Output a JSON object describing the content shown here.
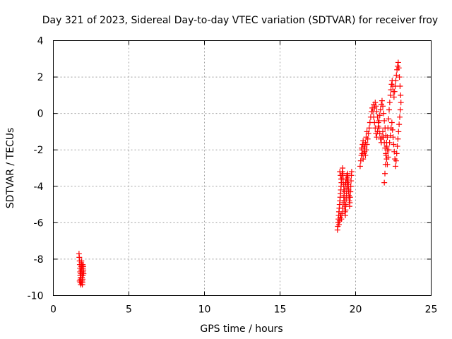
{
  "chart_data": {
    "type": "scatter",
    "title": "Day 321 of 2023, Sidereal Day-to-day VTEC variation (SDTVAR) for receiver froy",
    "xlabel": "GPS time / hours",
    "ylabel": "SDTVAR / TECUs",
    "xlim": [
      0,
      25
    ],
    "ylim": [
      -10,
      4
    ],
    "xticks": [
      0,
      5,
      10,
      15,
      20,
      25
    ],
    "yticks": [
      -10,
      -8,
      -6,
      -4,
      -2,
      0,
      2,
      4
    ],
    "grid": true,
    "marker": "+",
    "color": "#ff0000",
    "series": [
      {
        "points": [
          [
            1.7,
            -7.7
          ],
          [
            1.72,
            -7.9
          ],
          [
            1.74,
            -8.1
          ],
          [
            1.75,
            -8.3
          ],
          [
            1.76,
            -8.5
          ],
          [
            1.77,
            -8.7
          ],
          [
            1.78,
            -8.9
          ],
          [
            1.79,
            -9.1
          ],
          [
            1.8,
            -9.2
          ],
          [
            1.81,
            -9.0
          ],
          [
            1.82,
            -8.8
          ],
          [
            1.83,
            -8.6
          ],
          [
            1.84,
            -8.4
          ],
          [
            1.85,
            -8.2
          ],
          [
            1.86,
            -8.1
          ],
          [
            1.87,
            -8.3
          ],
          [
            1.88,
            -8.5
          ],
          [
            1.89,
            -8.8
          ],
          [
            1.9,
            -9.0
          ],
          [
            1.91,
            -9.2
          ],
          [
            1.92,
            -9.4
          ],
          [
            1.93,
            -9.3
          ],
          [
            1.94,
            -9.1
          ],
          [
            1.95,
            -8.9
          ],
          [
            1.96,
            -8.7
          ],
          [
            1.97,
            -8.5
          ],
          [
            1.98,
            -8.4
          ],
          [
            1.99,
            -8.6
          ],
          [
            2.0,
            -8.8
          ],
          [
            1.74,
            -9.2
          ],
          [
            1.78,
            -9.3
          ],
          [
            1.82,
            -9.4
          ],
          [
            1.86,
            -9.3
          ],
          [
            1.9,
            -8.4
          ],
          [
            1.95,
            -8.3
          ],
          [
            18.8,
            -6.4
          ],
          [
            18.82,
            -6.2
          ],
          [
            18.84,
            -6.0
          ],
          [
            18.86,
            -5.8
          ],
          [
            18.88,
            -5.6
          ],
          [
            18.9,
            -5.4
          ],
          [
            18.92,
            -5.2
          ],
          [
            18.94,
            -5.0
          ],
          [
            18.96,
            -4.8
          ],
          [
            18.98,
            -4.6
          ],
          [
            19.0,
            -4.4
          ],
          [
            19.02,
            -4.2
          ],
          [
            19.04,
            -4.0
          ],
          [
            19.06,
            -3.8
          ],
          [
            19.08,
            -3.6
          ],
          [
            19.1,
            -3.4
          ],
          [
            19.12,
            -3.2
          ],
          [
            19.14,
            -3.0
          ],
          [
            19.16,
            -3.3
          ],
          [
            19.18,
            -3.6
          ],
          [
            19.2,
            -3.9
          ],
          [
            19.22,
            -4.2
          ],
          [
            19.24,
            -4.5
          ],
          [
            19.26,
            -4.8
          ],
          [
            19.28,
            -5.1
          ],
          [
            19.3,
            -5.4
          ],
          [
            19.32,
            -5.6
          ],
          [
            19.34,
            -5.3
          ],
          [
            19.36,
            -5.0
          ],
          [
            19.38,
            -4.7
          ],
          [
            19.4,
            -4.4
          ],
          [
            19.42,
            -4.1
          ],
          [
            19.44,
            -3.8
          ],
          [
            19.46,
            -3.5
          ],
          [
            19.48,
            -3.3
          ],
          [
            19.5,
            -3.6
          ],
          [
            19.52,
            -3.9
          ],
          [
            19.54,
            -4.2
          ],
          [
            19.56,
            -4.5
          ],
          [
            19.58,
            -4.8
          ],
          [
            19.6,
            -5.1
          ],
          [
            19.62,
            -4.9
          ],
          [
            19.64,
            -4.6
          ],
          [
            19.66,
            -4.3
          ],
          [
            19.68,
            -4.0
          ],
          [
            19.7,
            -3.7
          ],
          [
            19.72,
            -3.4
          ],
          [
            19.74,
            -3.2
          ],
          [
            19.02,
            -5.6
          ],
          [
            19.06,
            -5.8
          ],
          [
            19.1,
            -5.5
          ],
          [
            19.14,
            -5.2
          ],
          [
            19.18,
            -4.9
          ],
          [
            19.22,
            -4.6
          ],
          [
            19.26,
            -4.3
          ],
          [
            19.3,
            -4.0
          ],
          [
            19.34,
            -3.8
          ],
          [
            19.38,
            -3.6
          ],
          [
            19.42,
            -3.4
          ],
          [
            19.46,
            -3.7
          ],
          [
            19.5,
            -4.0
          ],
          [
            19.54,
            -4.3
          ],
          [
            19.58,
            -4.6
          ],
          [
            18.96,
            -3.2
          ],
          [
            19.0,
            -3.4
          ],
          [
            19.04,
            -3.6
          ],
          [
            18.9,
            -6.1
          ],
          [
            18.94,
            -5.9
          ],
          [
            18.98,
            -5.7
          ],
          [
            20.3,
            -2.9
          ],
          [
            20.34,
            -2.6
          ],
          [
            20.38,
            -2.3
          ],
          [
            20.42,
            -2.0
          ],
          [
            20.46,
            -1.7
          ],
          [
            20.5,
            -1.5
          ],
          [
            20.55,
            -1.8
          ],
          [
            20.6,
            -2.1
          ],
          [
            20.65,
            -2.3
          ],
          [
            20.7,
            -2.0
          ],
          [
            20.75,
            -1.7
          ],
          [
            20.8,
            -1.4
          ],
          [
            20.85,
            -1.1
          ],
          [
            20.9,
            -0.8
          ],
          [
            20.95,
            -0.5
          ],
          [
            21.0,
            -0.2
          ],
          [
            21.05,
            0.1
          ],
          [
            21.1,
            0.3
          ],
          [
            21.15,
            0.1
          ],
          [
            21.2,
            -0.2
          ],
          [
            21.25,
            -0.5
          ],
          [
            21.3,
            -0.8
          ],
          [
            21.35,
            -1.1
          ],
          [
            21.4,
            -1.3
          ],
          [
            21.45,
            -1.0
          ],
          [
            21.5,
            -0.7
          ],
          [
            21.55,
            -0.4
          ],
          [
            21.6,
            -0.1
          ],
          [
            21.65,
            0.2
          ],
          [
            21.7,
            0.5
          ],
          [
            21.75,
            0.7
          ],
          [
            21.8,
            0.4
          ],
          [
            21.85,
            0.0
          ],
          [
            21.9,
            -0.4
          ],
          [
            21.95,
            -0.8
          ],
          [
            22.0,
            -1.2
          ],
          [
            22.05,
            -1.6
          ],
          [
            22.1,
            -2.0
          ],
          [
            21.9,
            -3.8
          ],
          [
            21.94,
            -3.3
          ],
          [
            21.98,
            -2.8
          ],
          [
            22.02,
            -2.3
          ],
          [
            22.06,
            -1.8
          ],
          [
            22.1,
            -1.3
          ],
          [
            22.14,
            -0.8
          ],
          [
            22.18,
            -0.3
          ],
          [
            22.22,
            0.2
          ],
          [
            22.26,
            0.6
          ],
          [
            22.3,
            1.0
          ],
          [
            22.34,
            1.3
          ],
          [
            22.38,
            1.6
          ],
          [
            22.42,
            1.8
          ],
          [
            22.46,
            1.5
          ],
          [
            22.5,
            1.2
          ],
          [
            22.54,
            0.9
          ],
          [
            22.58,
            1.2
          ],
          [
            22.62,
            1.5
          ],
          [
            22.66,
            1.8
          ],
          [
            22.7,
            2.1
          ],
          [
            22.74,
            2.4
          ],
          [
            22.78,
            2.6
          ],
          [
            22.82,
            2.8
          ],
          [
            22.86,
            2.5
          ],
          [
            22.9,
            2.0
          ],
          [
            22.94,
            1.5
          ],
          [
            22.98,
            1.0
          ],
          [
            23.0,
            0.6
          ],
          [
            22.96,
            0.2
          ],
          [
            22.92,
            -0.2
          ],
          [
            22.88,
            -0.6
          ],
          [
            22.84,
            -1.0
          ],
          [
            22.8,
            -1.4
          ],
          [
            22.76,
            -1.8
          ],
          [
            22.72,
            -2.2
          ],
          [
            22.68,
            -2.6
          ],
          [
            22.64,
            -2.9
          ],
          [
            22.6,
            -2.5
          ],
          [
            22.56,
            -2.1
          ],
          [
            22.52,
            -1.7
          ],
          [
            22.48,
            -1.3
          ],
          [
            22.44,
            -0.9
          ],
          [
            22.4,
            -0.5
          ],
          [
            20.4,
            -1.9
          ],
          [
            20.45,
            -2.2
          ],
          [
            20.5,
            -2.5
          ],
          [
            20.55,
            -2.2
          ],
          [
            20.6,
            -1.9
          ],
          [
            20.65,
            -1.6
          ],
          [
            20.7,
            -1.3
          ],
          [
            20.75,
            -1.0
          ],
          [
            21.2,
            0.5
          ],
          [
            21.25,
            0.3
          ],
          [
            21.3,
            0.6
          ],
          [
            21.35,
            0.4
          ],
          [
            21.4,
            0.1
          ],
          [
            21.45,
            -0.2
          ],
          [
            21.5,
            -0.5
          ],
          [
            21.55,
            -0.8
          ],
          [
            21.6,
            -1.1
          ],
          [
            21.65,
            -1.4
          ],
          [
            21.7,
            -1.6
          ],
          [
            21.75,
            -1.3
          ],
          [
            21.8,
            -1.0
          ],
          [
            21.85,
            -1.3
          ],
          [
            21.9,
            -1.6
          ],
          [
            21.95,
            -1.9
          ],
          [
            22.0,
            -2.2
          ],
          [
            22.05,
            -2.5
          ],
          [
            22.1,
            -2.8
          ],
          [
            22.15,
            -2.4
          ],
          [
            22.2,
            -2.0
          ],
          [
            22.25,
            -1.6
          ],
          [
            22.3,
            -1.2
          ],
          [
            22.35,
            -0.8
          ]
        ]
      }
    ]
  }
}
